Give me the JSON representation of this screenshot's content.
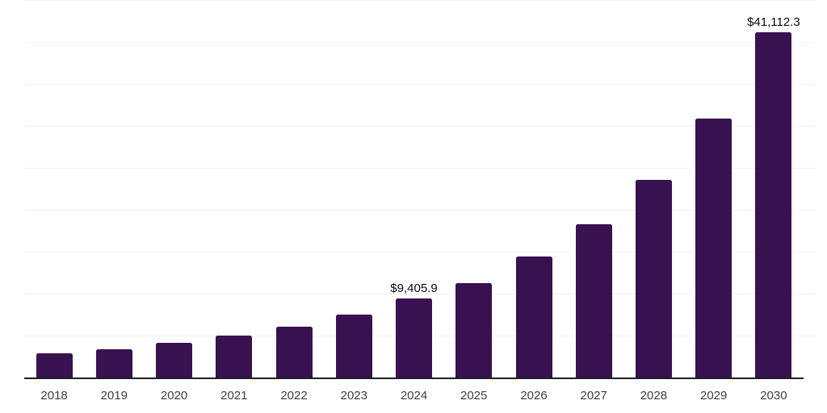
{
  "chart_data": {
    "type": "bar",
    "title": "",
    "xlabel": "",
    "ylabel": "",
    "categories": [
      "2018",
      "2019",
      "2020",
      "2021",
      "2022",
      "2023",
      "2024",
      "2025",
      "2026",
      "2027",
      "2028",
      "2029",
      "2030"
    ],
    "values": [
      2880,
      3360,
      4130,
      5000,
      6050,
      7540,
      9405.9,
      11300,
      14410,
      18250,
      23530,
      30840,
      41112.3
    ],
    "value_labels": [
      "",
      "",
      "",
      "",
      "",
      "",
      "$9,405.9",
      "",
      "",
      "",
      "",
      "",
      "$41,112.3"
    ],
    "ylim": [
      0,
      45000
    ],
    "gridline_interval": 5000,
    "grid": true,
    "legend": false,
    "colors": {
      "bar": "#381151",
      "gridline": "#f2f2f2",
      "axis": "#1f1f1f",
      "tick_label": "#3d3d3d",
      "value_label": "#0a0a0a",
      "background": "#ffffff"
    }
  }
}
